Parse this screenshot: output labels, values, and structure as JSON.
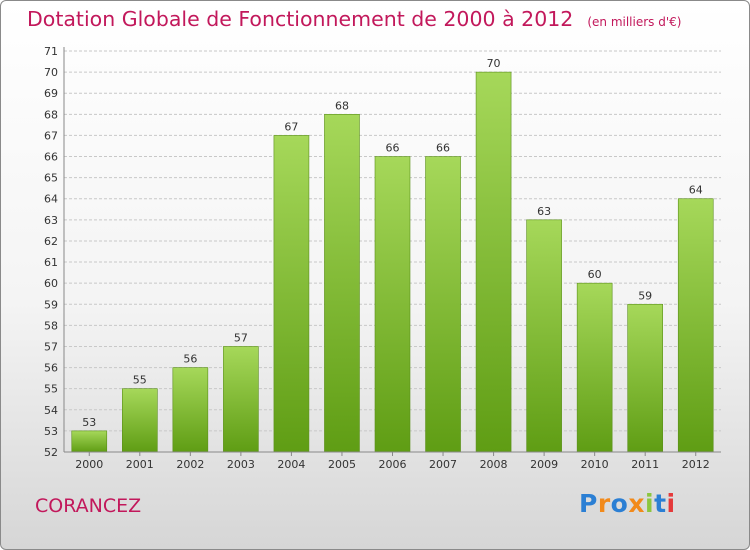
{
  "header": {
    "title": "Dotation Globale de Fonctionnement de 2000 à 2012",
    "unit": "(en milliers d'€)"
  },
  "footer": {
    "city": "CORANCEZ",
    "logo_text": "Proxiti"
  },
  "colors": {
    "title": "#c2185b",
    "bar_light": "#a6d85a",
    "bar_dark": "#5f9d14",
    "grid": "#c8c8c8"
  },
  "chart_data": {
    "type": "bar",
    "categories": [
      "2000",
      "2001",
      "2002",
      "2003",
      "2004",
      "2005",
      "2006",
      "2007",
      "2008",
      "2009",
      "2010",
      "2011",
      "2012"
    ],
    "values": [
      53,
      55,
      56,
      57,
      67,
      68,
      66,
      66,
      70,
      63,
      60,
      59,
      64
    ],
    "ylim": [
      52,
      71
    ],
    "yticks": [
      52,
      53,
      54,
      55,
      56,
      57,
      58,
      59,
      60,
      61,
      62,
      63,
      64,
      65,
      66,
      67,
      68,
      69,
      70,
      71
    ],
    "grid": true,
    "legend": "none"
  }
}
